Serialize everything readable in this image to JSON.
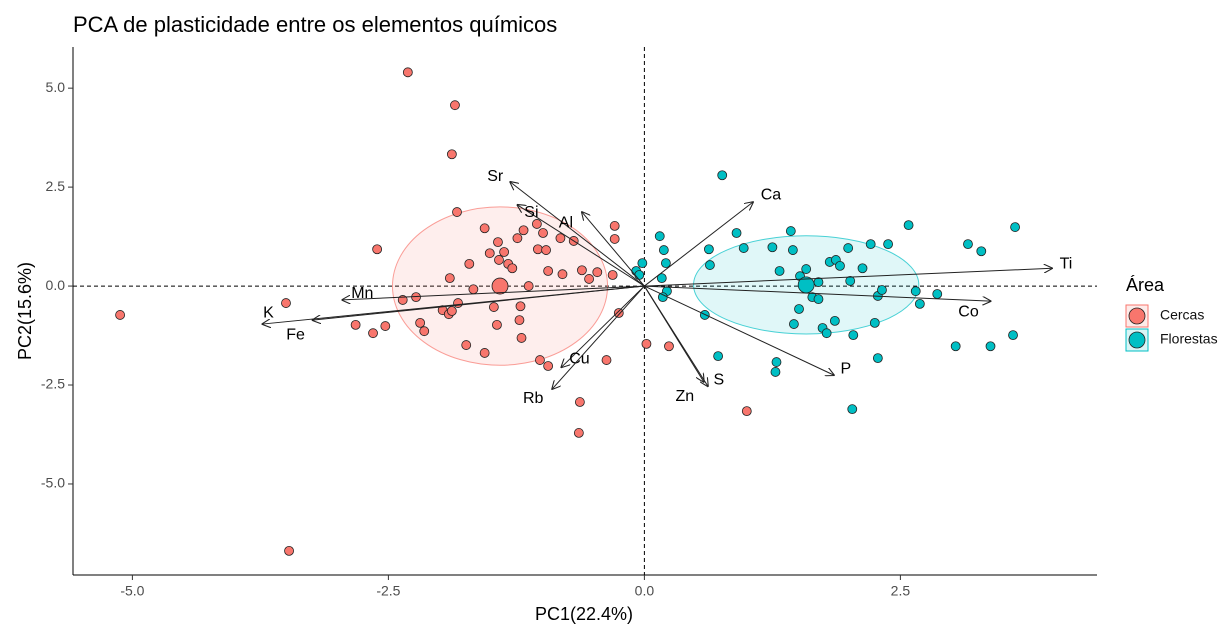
{
  "chart_data": {
    "type": "pca_biplot",
    "title": "PCA de plasticidade entre os elementos químicos",
    "x_label": "PC1(22.4%)",
    "y_label": "PC2(15.6%)",
    "legend_title": "Área",
    "legend_position": "right",
    "xlim": [
      -5.58,
      4.42
    ],
    "ylim": [
      -7.3,
      6.04
    ],
    "xticks": [
      {
        "value": -5,
        "label": "-5.0"
      },
      {
        "value": -2.5,
        "label": "-2.5"
      },
      {
        "value": 0,
        "label": "0.0"
      },
      {
        "value": 2.5,
        "label": "2.5"
      }
    ],
    "yticks": [
      {
        "value": -5,
        "label": "-5.0"
      },
      {
        "value": -2.5,
        "label": "-2.5"
      },
      {
        "value": 0,
        "label": "0.0"
      },
      {
        "value": 2.5,
        "label": "2.5"
      },
      {
        "value": 5,
        "label": "5.0"
      }
    ],
    "series": [
      {
        "name": "Cercas",
        "color": "#F8766D",
        "centroid": [
          -1.41,
          0.0
        ],
        "ellipse_radii": [
          1.05,
          2.0
        ],
        "x": [
          -2.31,
          -1.85,
          -1.88,
          -1.83,
          -5.12,
          -3.47,
          -3.5,
          -2.61,
          -2.82,
          -2.65,
          -2.53,
          -2.36,
          -2.23,
          -2.19,
          -2.15,
          -1.97,
          -1.91,
          -1.88,
          -1.82,
          -1.9,
          -1.71,
          -1.67,
          -1.56,
          -1.51,
          -1.47,
          -1.44,
          -1.74,
          -1.56,
          -1.43,
          -1.42,
          -1.37,
          -1.33,
          -1.29,
          -1.24,
          -1.18,
          -1.21,
          -1.22,
          -1.2,
          -1.13,
          -1.05,
          -1.04,
          -0.99,
          -0.96,
          -0.94,
          -1.02,
          -0.94,
          -0.82,
          -0.8,
          -0.69,
          -0.61,
          -0.54,
          -0.46,
          -0.29,
          -0.29,
          -0.31,
          -0.25,
          -0.37,
          -0.63,
          -0.64,
          0.02,
          0.24,
          1.0
        ],
        "values": [
          5.4,
          4.57,
          3.33,
          1.87,
          -0.73,
          -6.69,
          -0.43,
          0.93,
          -0.98,
          -1.19,
          -1.01,
          -0.35,
          -0.28,
          -0.93,
          -1.14,
          -0.61,
          -0.71,
          -0.63,
          -0.43,
          0.2,
          0.56,
          -0.08,
          1.46,
          0.83,
          -0.53,
          -0.98,
          -1.49,
          -1.69,
          1.11,
          0.66,
          0.86,
          0.56,
          0.45,
          1.21,
          1.41,
          -0.51,
          -0.86,
          -1.31,
          0.0,
          1.57,
          0.93,
          1.34,
          0.91,
          0.38,
          -1.87,
          -2.02,
          1.21,
          0.3,
          1.14,
          0.4,
          0.18,
          0.35,
          1.52,
          1.19,
          0.28,
          -0.68,
          -1.87,
          -2.93,
          -3.71,
          -1.46,
          -1.52,
          -3.16
        ]
      },
      {
        "name": "Florestas",
        "color": "#00BFC4",
        "centroid": [
          1.58,
          0.03
        ],
        "ellipse_radii": [
          1.1,
          1.24
        ],
        "x": [
          0.76,
          2.58,
          3.62,
          3.16,
          3.29,
          2.38,
          2.21,
          0.15,
          0.19,
          0.21,
          0.17,
          0.22,
          0.18,
          -0.08,
          -0.05,
          -0.02,
          0.63,
          0.64,
          0.59,
          0.72,
          0.9,
          0.97,
          1.25,
          1.32,
          1.43,
          1.45,
          1.52,
          1.58,
          1.64,
          1.7,
          1.81,
          1.87,
          1.91,
          1.99,
          2.01,
          2.13,
          1.29,
          1.28,
          1.46,
          1.51,
          1.7,
          1.74,
          1.86,
          2.04,
          2.25,
          2.28,
          2.32,
          2.65,
          2.69,
          2.86,
          2.03,
          2.28,
          3.04,
          3.38,
          3.6,
          1.78
        ],
        "values": [
          2.8,
          1.54,
          1.49,
          1.06,
          0.88,
          1.06,
          1.06,
          1.26,
          0.91,
          0.58,
          0.2,
          -0.13,
          -0.28,
          0.38,
          0.28,
          0.58,
          0.93,
          0.53,
          -0.73,
          -1.77,
          1.34,
          0.96,
          0.98,
          0.38,
          1.39,
          0.91,
          0.25,
          0.43,
          -0.28,
          0.1,
          0.61,
          0.66,
          0.51,
          0.96,
          0.13,
          0.45,
          -1.92,
          -2.17,
          -0.96,
          -0.58,
          -0.33,
          -1.06,
          -0.88,
          -1.24,
          -0.93,
          -0.25,
          -0.1,
          -0.13,
          -0.45,
          -0.2,
          -3.11,
          -1.82,
          -1.52,
          -1.52,
          -1.24,
          -1.19
        ]
      }
    ],
    "loadings": {
      "names": [
        "Sr",
        "Si",
        "Al",
        "Ca",
        "Ti",
        "Co",
        "P",
        "S",
        "Zn",
        "Cu",
        "Rb",
        "Fe",
        "K",
        "Mn"
      ],
      "x": [
        -1.31,
        -1.24,
        -0.61,
        1.06,
        3.98,
        3.38,
        1.85,
        0.62,
        0.58,
        -0.81,
        -0.9,
        -3.24,
        -3.73,
        -2.95
      ],
      "values": [
        2.63,
        2.05,
        1.87,
        2.12,
        0.45,
        -0.38,
        -2.25,
        -2.53,
        -2.42,
        -2.05,
        -2.6,
        -0.86,
        -0.96,
        -0.35
      ]
    }
  }
}
